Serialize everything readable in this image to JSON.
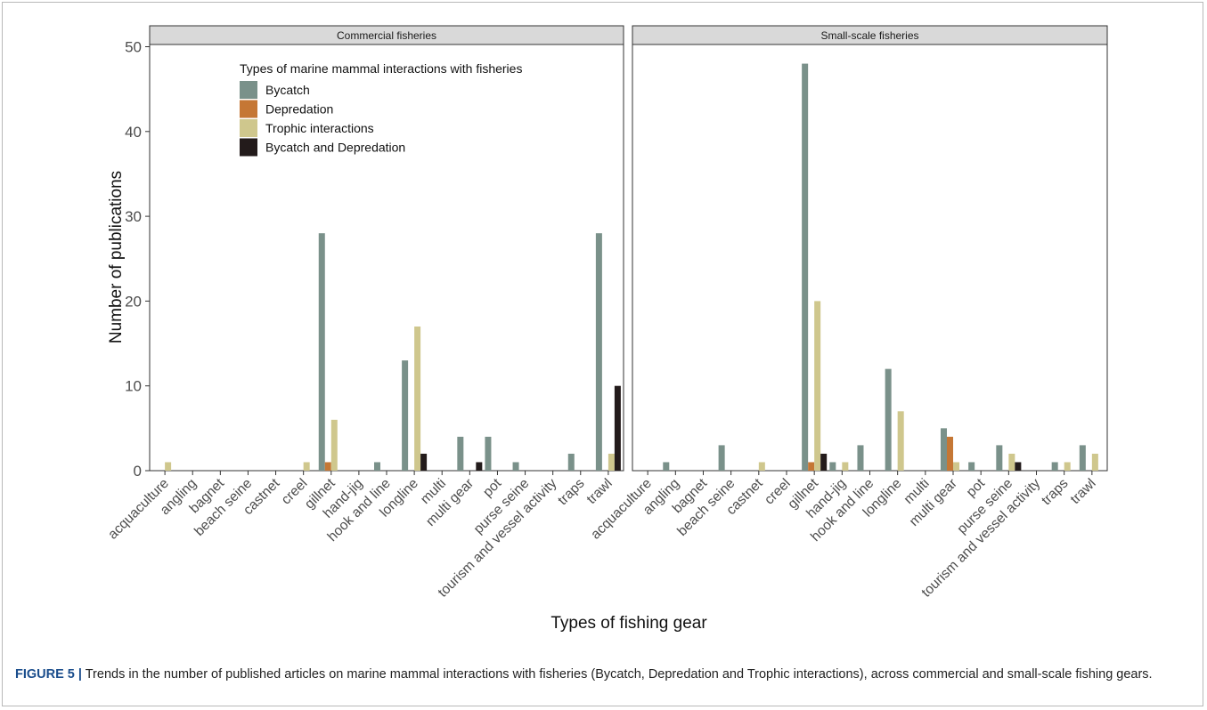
{
  "caption": {
    "label": "FIGURE 5 |",
    "text": " Trends in the number of published articles on marine mammal interactions with fisheries (Bycatch, Depredation and Trophic interactions), across commercial and small-scale fishing gears."
  },
  "chart_data": {
    "type": "bar",
    "xlabel": "Types of fishing gear",
    "ylabel": "Number of publications",
    "ylim": [
      0,
      50
    ],
    "yticks": [
      0,
      10,
      20,
      30,
      40,
      50
    ],
    "grid": false,
    "legend": {
      "title": "Types of marine mammal interactions with fisheries",
      "placement": "top-left inside first panel",
      "entries": [
        "Bycatch",
        "Depredation",
        "Trophic interactions",
        "Bycatch and Depredation"
      ]
    },
    "series_colors": {
      "Bycatch": "#7a918a",
      "Depredation": "#c57735",
      "Trophic interactions": "#cfc78d",
      "Bycatch and Depredation": "#231b1b"
    },
    "categories": [
      "acquaculture",
      "angling",
      "bagnet",
      "beach seine",
      "castnet",
      "creel",
      "gillnet",
      "hand-jig",
      "hook and line",
      "longline",
      "multi",
      "multi gear",
      "pot",
      "purse seine",
      "tourism and vessel activity",
      "traps",
      "trawl"
    ],
    "panels": [
      {
        "title": "Commercial fisheries",
        "series": [
          {
            "name": "Bycatch",
            "values": [
              0,
              0,
              0,
              0,
              0,
              0,
              28,
              0,
              1,
              13,
              0,
              4,
              4,
              1,
              0,
              2,
              28
            ]
          },
          {
            "name": "Depredation",
            "values": [
              0,
              0,
              0,
              0,
              0,
              0,
              1,
              0,
              0,
              0,
              0,
              0,
              0,
              0,
              0,
              0,
              0
            ]
          },
          {
            "name": "Trophic interactions",
            "values": [
              1,
              0,
              0,
              0,
              0,
              1,
              6,
              0,
              0,
              17,
              0,
              0,
              0,
              0,
              0,
              0,
              2
            ]
          },
          {
            "name": "Bycatch and Depredation",
            "values": [
              0,
              0,
              0,
              0,
              0,
              0,
              0,
              0,
              0,
              2,
              0,
              1,
              0,
              0,
              0,
              0,
              10
            ]
          }
        ]
      },
      {
        "title": "Small-scale fisheries",
        "series": [
          {
            "name": "Bycatch",
            "values": [
              0,
              1,
              0,
              3,
              0,
              0,
              48,
              1,
              3,
              12,
              0,
              5,
              1,
              3,
              0,
              1,
              3
            ]
          },
          {
            "name": "Depredation",
            "values": [
              0,
              0,
              0,
              0,
              0,
              0,
              1,
              0,
              0,
              0,
              0,
              4,
              0,
              0,
              0,
              0,
              0
            ]
          },
          {
            "name": "Trophic interactions",
            "values": [
              0,
              0,
              0,
              0,
              1,
              0,
              20,
              1,
              0,
              7,
              0,
              1,
              0,
              2,
              0,
              1,
              2
            ]
          },
          {
            "name": "Bycatch and Depredation",
            "values": [
              0,
              0,
              0,
              0,
              0,
              0,
              2,
              0,
              0,
              0,
              0,
              0,
              0,
              1,
              0,
              0,
              0
            ]
          }
        ]
      }
    ]
  }
}
